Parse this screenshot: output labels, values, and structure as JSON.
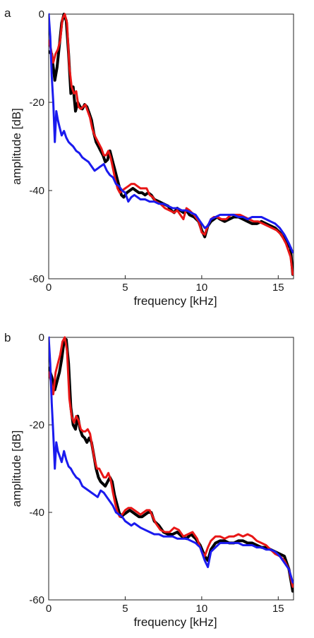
{
  "chart_data": [
    {
      "panel_label": "a",
      "type": "line",
      "xlabel": "frequency [kHz]",
      "ylabel": "amplitude [dB]",
      "xlim": [
        0,
        16
      ],
      "ylim": [
        -60,
        0
      ],
      "xticks": [
        0,
        5,
        10,
        15
      ],
      "yticks": [
        0,
        -20,
        -40,
        -60
      ],
      "grid": false,
      "series": [
        {
          "color": "#000000",
          "x": [
            0,
            0.2,
            0.4,
            0.55,
            0.7,
            0.85,
            1.0,
            1.15,
            1.3,
            1.45,
            1.6,
            1.75,
            1.9,
            2.05,
            2.2,
            2.35,
            2.5,
            2.65,
            2.8,
            2.95,
            3.1,
            3.25,
            3.4,
            3.55,
            3.7,
            3.85,
            4.0,
            4.15,
            4.3,
            4.45,
            4.6,
            4.75,
            4.9,
            5.1,
            5.3,
            5.5,
            5.7,
            5.9,
            6.1,
            6.3,
            6.5,
            6.7,
            6.9,
            7.2,
            7.5,
            7.8,
            8.0,
            8.2,
            8.4,
            8.6,
            8.8,
            9.0,
            9.2,
            9.5,
            9.8,
            10.0,
            10.2,
            10.4,
            10.6,
            10.8,
            11.0,
            11.2,
            11.5,
            11.8,
            12.1,
            12.4,
            12.7,
            13.0,
            13.3,
            13.6,
            13.9,
            14.2,
            14.5,
            14.8,
            15.1,
            15.4,
            15.6,
            15.8,
            15.95
          ],
          "y": [
            -8.5,
            -9,
            -15,
            -12,
            -7,
            -2,
            0,
            -1.5,
            -9,
            -18,
            -16.5,
            -22,
            -20,
            -21,
            -21.5,
            -20.5,
            -21,
            -22.5,
            -24,
            -27,
            -29,
            -30,
            -31,
            -32,
            -33.5,
            -33,
            -31,
            -33,
            -35,
            -37,
            -39,
            -41,
            -41.5,
            -40.5,
            -40,
            -39.5,
            -40,
            -40.5,
            -40.5,
            -41,
            -40.5,
            -41,
            -42,
            -42.5,
            -43,
            -43.5,
            -44.5,
            -45,
            -44,
            -44.5,
            -45,
            -44.5,
            -45.5,
            -46,
            -47,
            -49,
            -50.5,
            -48,
            -47,
            -46.5,
            -46,
            -46.5,
            -47,
            -46.5,
            -46,
            -46,
            -46.5,
            -47,
            -47.5,
            -47.5,
            -47,
            -47.5,
            -48,
            -48.5,
            -49.5,
            -51,
            -52,
            -53,
            -59
          ]
        },
        {
          "color": "#e81616",
          "x": [
            0,
            0.15,
            0.3,
            0.45,
            0.6,
            0.75,
            0.9,
            1.05,
            1.2,
            1.35,
            1.5,
            1.65,
            1.8,
            1.95,
            2.1,
            2.25,
            2.4,
            2.55,
            2.7,
            2.85,
            3.0,
            3.15,
            3.3,
            3.45,
            3.6,
            3.75,
            3.9,
            4.05,
            4.2,
            4.35,
            4.5,
            4.65,
            4.8,
            5.0,
            5.2,
            5.4,
            5.6,
            5.8,
            6.0,
            6.2,
            6.4,
            6.6,
            6.8,
            7.0,
            7.3,
            7.6,
            7.9,
            8.2,
            8.4,
            8.6,
            8.8,
            9.0,
            9.2,
            9.5,
            9.8,
            10.0,
            10.2,
            10.4,
            10.6,
            10.8,
            11.0,
            11.3,
            11.6,
            11.9,
            12.2,
            12.5,
            12.8,
            13.1,
            13.4,
            13.7,
            14.0,
            14.3,
            14.6,
            14.9,
            15.2,
            15.5,
            15.8,
            15.95
          ],
          "y": [
            -6,
            -8,
            -11,
            -9,
            -8,
            -6,
            -1,
            0,
            -2,
            -12,
            -16.5,
            -18,
            -17.5,
            -21,
            -21.5,
            -21,
            -20.5,
            -22,
            -23.5,
            -26,
            -27.5,
            -28.5,
            -29.5,
            -30.5,
            -32,
            -32,
            -31,
            -32.5,
            -35,
            -37.5,
            -39.5,
            -40.5,
            -40,
            -39.5,
            -39,
            -38.5,
            -38.5,
            -39,
            -39.5,
            -39.5,
            -39.5,
            -41,
            -41.5,
            -42.5,
            -43,
            -44,
            -44.5,
            -45,
            -44.5,
            -45.5,
            -46.5,
            -44,
            -44.5,
            -45.5,
            -47,
            -49.5,
            -50,
            -48,
            -46.5,
            -46,
            -46,
            -46.5,
            -46.5,
            -45.5,
            -45.5,
            -45.5,
            -46,
            -46.5,
            -47,
            -47,
            -47.5,
            -48,
            -48.5,
            -49,
            -50,
            -52,
            -55,
            -59
          ]
        },
        {
          "color": "#1a1aee",
          "x": [
            0,
            0.1,
            0.2,
            0.3,
            0.4,
            0.5,
            0.6,
            0.7,
            0.85,
            1.0,
            1.15,
            1.3,
            1.45,
            1.6,
            1.8,
            2.0,
            2.2,
            2.4,
            2.6,
            2.8,
            3.0,
            3.2,
            3.4,
            3.6,
            3.8,
            4.0,
            4.2,
            4.4,
            4.6,
            4.8,
            5.0,
            5.2,
            5.4,
            5.6,
            5.8,
            6.0,
            6.3,
            6.6,
            6.9,
            7.2,
            7.5,
            7.8,
            8.1,
            8.4,
            8.7,
            9.0,
            9.3,
            9.6,
            9.9,
            10.2,
            10.4,
            10.6,
            10.9,
            11.2,
            11.5,
            11.8,
            12.1,
            12.4,
            12.7,
            13.0,
            13.3,
            13.6,
            13.9,
            14.2,
            14.5,
            14.8,
            15.1,
            15.4,
            15.7,
            15.95
          ],
          "y": [
            0,
            -5,
            -14,
            -20,
            -29,
            -22,
            -24,
            -25.5,
            -27.5,
            -26.5,
            -28,
            -29,
            -29.5,
            -30,
            -31,
            -31.5,
            -32.5,
            -33,
            -33.5,
            -34.5,
            -35.5,
            -35,
            -34.5,
            -34,
            -35.5,
            -36.5,
            -37,
            -38.5,
            -39,
            -40,
            -40.5,
            -42.5,
            -41.5,
            -41,
            -41.5,
            -42,
            -42,
            -42.5,
            -42.5,
            -43,
            -43,
            -43.5,
            -44,
            -44,
            -44.5,
            -44.5,
            -45,
            -45.5,
            -47,
            -48.5,
            -48,
            -46.5,
            -46,
            -45.5,
            -45.5,
            -45.5,
            -45.5,
            -46,
            -46,
            -46.5,
            -46,
            -46,
            -46,
            -46.5,
            -47,
            -47.5,
            -48.5,
            -50,
            -52,
            -54
          ]
        }
      ]
    },
    {
      "panel_label": "b",
      "type": "line",
      "xlabel": "frequency [kHz]",
      "ylabel": "amplitude [dB]",
      "xlim": [
        0,
        16
      ],
      "ylim": [
        -60,
        0
      ],
      "xticks": [
        0,
        5,
        10,
        15
      ],
      "yticks": [
        0,
        -20,
        -40,
        -60
      ],
      "grid": false,
      "series": [
        {
          "color": "#000000",
          "x": [
            0,
            0.2,
            0.4,
            0.55,
            0.7,
            0.85,
            1.0,
            1.15,
            1.3,
            1.45,
            1.6,
            1.75,
            1.9,
            2.05,
            2.2,
            2.35,
            2.5,
            2.65,
            2.8,
            2.95,
            3.1,
            3.25,
            3.4,
            3.55,
            3.7,
            3.85,
            4.0,
            4.15,
            4.3,
            4.45,
            4.6,
            4.75,
            4.9,
            5.1,
            5.3,
            5.5,
            5.7,
            5.9,
            6.1,
            6.3,
            6.5,
            6.7,
            6.9,
            7.2,
            7.5,
            7.8,
            8.1,
            8.4,
            8.7,
            9.0,
            9.3,
            9.6,
            9.9,
            10.2,
            10.4,
            10.6,
            10.9,
            11.2,
            11.5,
            11.8,
            12.1,
            12.4,
            12.7,
            13.0,
            13.3,
            13.6,
            13.9,
            14.2,
            14.5,
            14.8,
            15.1,
            15.4,
            15.7,
            15.95
          ],
          "y": [
            -7,
            -9,
            -12,
            -10,
            -8,
            -5,
            -1,
            -0.5,
            -6,
            -16,
            -20,
            -21,
            -18,
            -21,
            -22.5,
            -23,
            -24,
            -23,
            -24,
            -27,
            -30,
            -32,
            -33,
            -33.5,
            -34,
            -33,
            -32,
            -33,
            -36,
            -38,
            -40,
            -41,
            -40.5,
            -40,
            -39.5,
            -40,
            -40.5,
            -41,
            -41,
            -40.5,
            -40,
            -40,
            -42,
            -43,
            -44.5,
            -45,
            -45,
            -44.5,
            -45.5,
            -46,
            -45,
            -46,
            -47.5,
            -50,
            -51,
            -48.5,
            -47,
            -46.5,
            -46.5,
            -47,
            -47,
            -46.5,
            -46.5,
            -47,
            -47,
            -47.5,
            -48,
            -48,
            -48.5,
            -49,
            -49.5,
            -50,
            -53,
            -58
          ]
        },
        {
          "color": "#e81616",
          "x": [
            0,
            0.15,
            0.3,
            0.45,
            0.6,
            0.75,
            0.9,
            1.05,
            1.2,
            1.35,
            1.5,
            1.65,
            1.8,
            1.95,
            2.1,
            2.25,
            2.4,
            2.55,
            2.7,
            2.85,
            3.0,
            3.15,
            3.3,
            3.45,
            3.6,
            3.75,
            3.9,
            4.05,
            4.2,
            4.35,
            4.5,
            4.65,
            4.8,
            5.0,
            5.2,
            5.4,
            5.6,
            5.8,
            6.0,
            6.2,
            6.4,
            6.6,
            6.8,
            7.0,
            7.3,
            7.6,
            7.9,
            8.2,
            8.5,
            8.8,
            9.1,
            9.4,
            9.7,
            10.0,
            10.2,
            10.4,
            10.6,
            10.9,
            11.2,
            11.5,
            11.8,
            12.1,
            12.4,
            12.7,
            13.0,
            13.3,
            13.6,
            13.9,
            14.2,
            14.5,
            14.8,
            15.1,
            15.4,
            15.7,
            15.95
          ],
          "y": [
            -8,
            -10,
            -13,
            -8,
            -6,
            -4,
            -1,
            0,
            -3,
            -14,
            -18,
            -19.5,
            -18,
            -19,
            -21,
            -21.5,
            -21.5,
            -21,
            -22,
            -25,
            -28,
            -30,
            -30,
            -31,
            -32,
            -32,
            -31,
            -32.5,
            -35.5,
            -38,
            -40,
            -41,
            -40.5,
            -39.5,
            -39,
            -39,
            -39.5,
            -40,
            -40.5,
            -40,
            -39.5,
            -39.5,
            -41,
            -42.5,
            -44,
            -44.5,
            -44.5,
            -43.5,
            -44,
            -45.5,
            -45,
            -44.5,
            -46,
            -49,
            -50,
            -48,
            -46.5,
            -45.5,
            -45.5,
            -46,
            -45.5,
            -45.5,
            -45,
            -45.5,
            -45,
            -45.5,
            -46.5,
            -47,
            -47.5,
            -48.5,
            -49.5,
            -50,
            -51,
            -53,
            -57
          ]
        },
        {
          "color": "#1a1aee",
          "x": [
            0,
            0.1,
            0.2,
            0.3,
            0.4,
            0.5,
            0.6,
            0.7,
            0.85,
            1.0,
            1.15,
            1.3,
            1.45,
            1.6,
            1.8,
            2.0,
            2.2,
            2.4,
            2.6,
            2.8,
            3.0,
            3.2,
            3.4,
            3.6,
            3.8,
            4.0,
            4.2,
            4.4,
            4.6,
            4.8,
            5.0,
            5.2,
            5.4,
            5.6,
            5.8,
            6.0,
            6.3,
            6.6,
            6.9,
            7.2,
            7.5,
            7.8,
            8.1,
            8.4,
            8.7,
            9.0,
            9.3,
            9.6,
            9.9,
            10.2,
            10.4,
            10.6,
            10.9,
            11.2,
            11.5,
            11.8,
            12.1,
            12.4,
            12.7,
            13.0,
            13.3,
            13.6,
            13.9,
            14.2,
            14.5,
            14.8,
            15.1,
            15.4,
            15.7,
            15.95
          ],
          "y": [
            0,
            -6,
            -15,
            -22,
            -30,
            -24,
            -26,
            -27,
            -28.5,
            -26,
            -28,
            -29.5,
            -30,
            -31,
            -32,
            -32.5,
            -34,
            -34.5,
            -35,
            -35.5,
            -36,
            -36.5,
            -35,
            -35.5,
            -36.5,
            -37.5,
            -38.5,
            -40,
            -40.5,
            -41,
            -42,
            -42.5,
            -43,
            -42.5,
            -43,
            -43.5,
            -44,
            -44.5,
            -45,
            -45,
            -45.5,
            -45.5,
            -45.5,
            -46,
            -46,
            -46,
            -46.5,
            -47,
            -48,
            -51,
            -52.5,
            -49,
            -48,
            -47,
            -47,
            -47,
            -47,
            -47,
            -47.5,
            -47.5,
            -47.5,
            -48,
            -48,
            -48.5,
            -48.5,
            -49,
            -50,
            -51.5,
            -53,
            -56
          ]
        }
      ]
    }
  ]
}
